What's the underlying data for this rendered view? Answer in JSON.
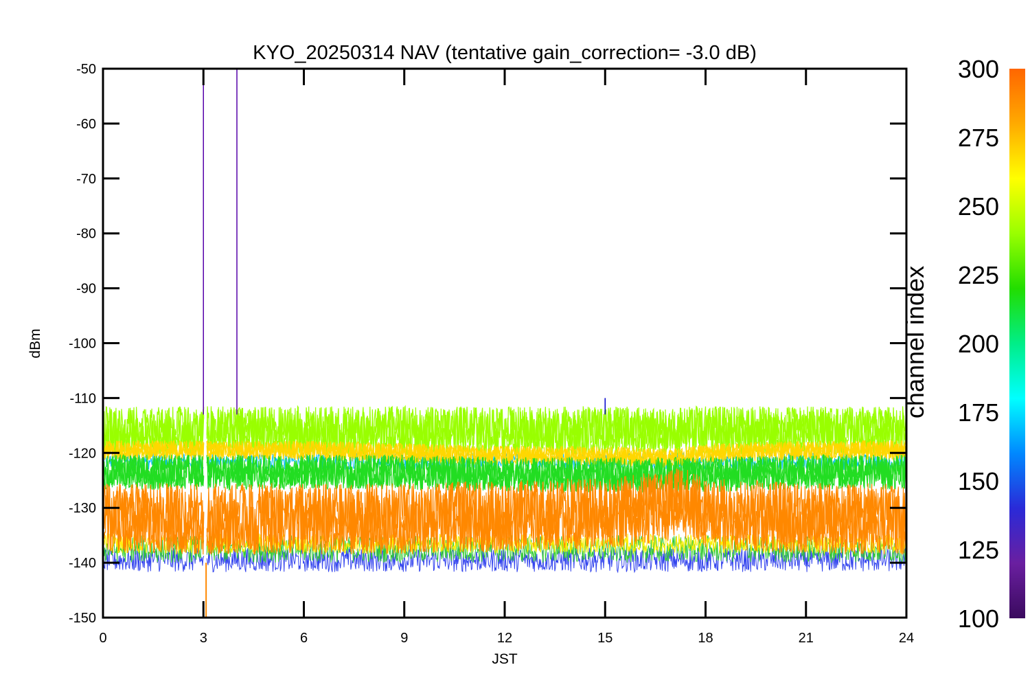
{
  "chart_data": {
    "type": "line",
    "title": "KYO_20250314 NAV (tentative gain_correction= -3.0 dB)",
    "xlabel": "JST",
    "ylabel": "dBm",
    "xlim": [
      0,
      24
    ],
    "ylim": [
      -150,
      -50
    ],
    "xticks": [
      "0",
      "3",
      "6",
      "9",
      "12",
      "15",
      "18",
      "21",
      "24"
    ],
    "yticks": [
      "-50",
      "-60",
      "-70",
      "-80",
      "-90",
      "-100",
      "-110",
      "-120",
      "-130",
      "-140",
      "-150"
    ],
    "grid": false,
    "colorbar": {
      "label": "channel index",
      "range": [
        100,
        300
      ],
      "ticks": [
        "300",
        "275",
        "250",
        "225",
        "200",
        "175",
        "150",
        "125",
        "100"
      ],
      "colormap": "rainbow"
    },
    "series": [
      {
        "color": "#99ff00",
        "channel_index": 262,
        "x": [
          0,
          3,
          6,
          9,
          12,
          15,
          18,
          21,
          24
        ],
        "y": [
          -116,
          -116,
          -116,
          -116,
          -116,
          -116,
          -116,
          -116,
          -116
        ]
      },
      {
        "color": "#ffd700",
        "channel_index": 278,
        "x": [
          0,
          3,
          6,
          9,
          12,
          15,
          17,
          18,
          21,
          24
        ],
        "y": [
          -119.5,
          -119.5,
          -119.5,
          -120,
          -120.5,
          -120.5,
          -121,
          -120,
          -119.5,
          -119.5
        ]
      },
      {
        "color": "#22dd22",
        "channel_index": 235,
        "x": [
          0,
          3,
          6,
          9,
          12,
          15,
          18,
          21,
          24
        ],
        "y": [
          -123.5,
          -123.5,
          -123.5,
          -123.5,
          -124,
          -124,
          -124,
          -123.5,
          -123.5
        ]
      },
      {
        "color": "#ff8800",
        "channel_index": 295,
        "x": [
          0,
          3,
          6,
          9,
          12,
          15,
          16.5,
          17.3,
          18,
          21,
          24
        ],
        "y": [
          -132,
          -132,
          -132,
          -132,
          -131.5,
          -131,
          -130,
          -129,
          -131,
          -132,
          -132
        ]
      }
    ],
    "spikes": [
      {
        "x": 3.0,
        "y_top": -50,
        "color": "#5500aa"
      },
      {
        "x": 4.0,
        "y_top": -50,
        "color": "#5500aa"
      },
      {
        "x": 15.0,
        "y_top": -110,
        "color": "#0000cc"
      }
    ],
    "data_gap": {
      "x_start": 3.02,
      "x_end": 3.1
    }
  }
}
